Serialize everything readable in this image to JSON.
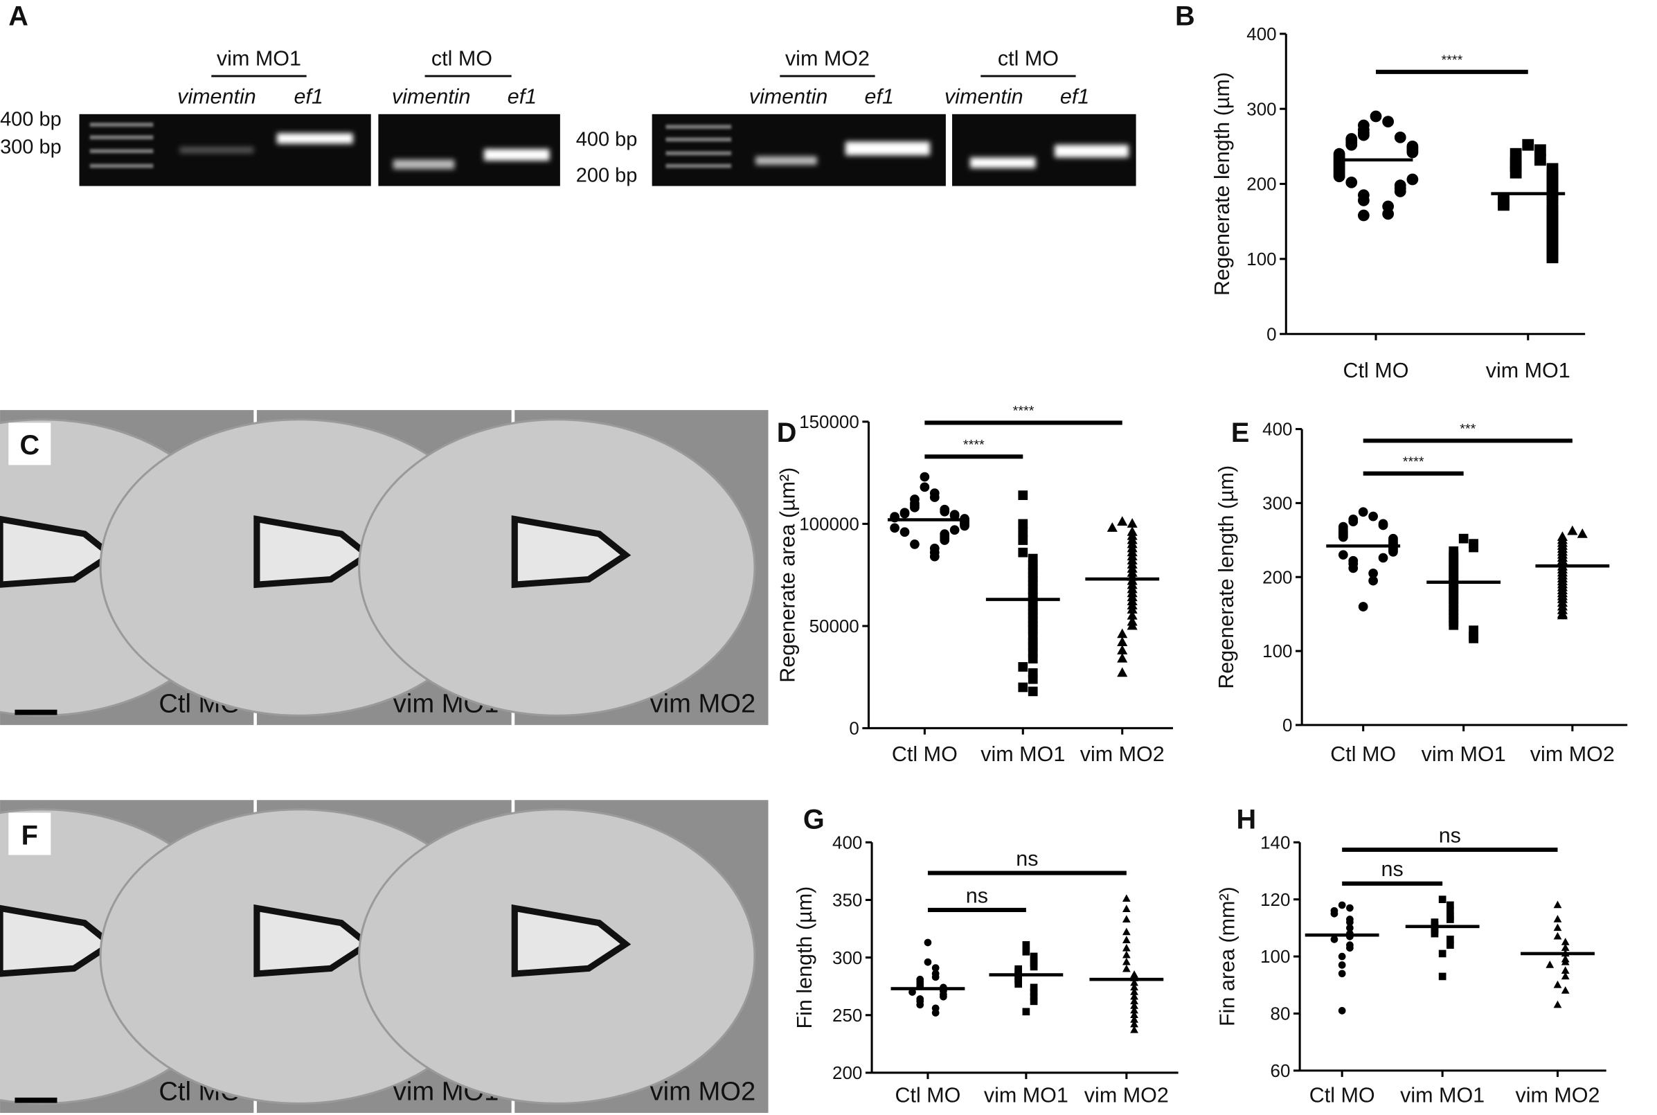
{
  "gel": {
    "panel_label": "A",
    "markers_left": [
      "400 bp",
      "300 bp"
    ],
    "markers_right": [
      "400 bp",
      "200 bp"
    ],
    "groups": [
      {
        "title": "vim MO1",
        "lanes": [
          "vimentin",
          "ef1"
        ]
      },
      {
        "title": "ctl MO",
        "lanes": [
          "vimentin",
          "ef1"
        ]
      },
      {
        "title": "vim MO2",
        "lanes": [
          "vimentin",
          "ef1"
        ]
      },
      {
        "title": "ctl MO",
        "lanes": [
          "vimentin",
          "ef1"
        ]
      }
    ]
  },
  "micrographs": [
    {
      "panel_label": "C",
      "labels": [
        "Ctl MO",
        "vim MO1",
        "vim MO2"
      ]
    },
    {
      "panel_label": "F",
      "labels": [
        "Ctl MO",
        "vim MO1",
        "vim MO2"
      ]
    }
  ],
  "chart_data": [
    {
      "type": "dotplot",
      "panel_label": "B",
      "y_label": "Regenerate length (µm)",
      "categories": [
        "Ctl MO",
        "vim MO1"
      ],
      "ylim": [
        0,
        400
      ],
      "yticks": [
        0,
        100,
        200,
        300,
        400
      ],
      "groups": [
        {
          "marker": "circle",
          "mean": 232,
          "values": [
            290,
            283,
            278,
            272,
            268,
            265,
            262,
            260,
            258,
            255,
            252,
            250,
            248,
            246,
            244,
            242,
            240,
            238,
            236,
            234,
            232,
            230,
            228,
            226,
            224,
            222,
            220,
            218,
            216,
            214,
            212,
            210,
            206,
            202,
            198,
            194,
            190,
            185,
            178,
            170,
            160,
            158
          ]
        },
        {
          "marker": "square",
          "mean": 187,
          "values": [
            252,
            245,
            240,
            232,
            228,
            224,
            220,
            215,
            212,
            208,
            204,
            200,
            197,
            194,
            190,
            187,
            184,
            181,
            178,
            175,
            172,
            168,
            164,
            160,
            156,
            152,
            148,
            144,
            140,
            136,
            132,
            128,
            124,
            120,
            116,
            112,
            108,
            104,
            102
          ]
        }
      ],
      "comparisons": [
        {
          "label": "****",
          "groups": [
            0,
            1
          ]
        }
      ]
    },
    {
      "type": "dotplot",
      "panel_label": "D",
      "y_label": "Regenerate area (µm²)",
      "categories": [
        "Ctl MO",
        "vim MO1",
        "vim MO2"
      ],
      "ylim": [
        0,
        150000
      ],
      "yticks": [
        0,
        50000,
        100000,
        150000
      ],
      "groups": [
        {
          "marker": "circle",
          "mean": 102000,
          "values": [
            123000,
            118000,
            115000,
            113000,
            112000,
            110000,
            109000,
            108000,
            107000,
            106000,
            105500,
            105000,
            104500,
            104000,
            103500,
            103000,
            102500,
            102000,
            101500,
            101000,
            100500,
            100000,
            99500,
            99000,
            98000,
            97000,
            96000,
            95000,
            94000,
            93000,
            92000,
            90000,
            88000,
            86000,
            84000
          ]
        },
        {
          "marker": "square",
          "mean": 63000,
          "values": [
            114000,
            100000,
            96000,
            92000,
            86000,
            83000,
            80000,
            78000,
            76000,
            74000,
            72000,
            70000,
            68000,
            66000,
            64000,
            62000,
            60000,
            58000,
            56000,
            54000,
            52000,
            50000,
            48000,
            45000,
            42000,
            40000,
            37000,
            34000,
            30000,
            27000,
            24000,
            20000,
            18000
          ]
        },
        {
          "marker": "triangle",
          "mean": 73000,
          "values": [
            101000,
            100000,
            98000,
            96000,
            94000,
            92000,
            90000,
            88000,
            86000,
            84000,
            82000,
            80000,
            78000,
            76000,
            74000,
            72000,
            70000,
            68000,
            66000,
            64000,
            62000,
            60000,
            58000,
            55000,
            52000,
            50000,
            46000,
            42000,
            38000,
            34000,
            27000
          ]
        }
      ],
      "comparisons": [
        {
          "label": "****",
          "groups": [
            0,
            1
          ]
        },
        {
          "label": "****",
          "groups": [
            0,
            2
          ]
        }
      ]
    },
    {
      "type": "dotplot",
      "panel_label": "E",
      "y_label": "Regenerate length (µm)",
      "categories": [
        "Ctl MO",
        "vim MO1",
        "vim MO2"
      ],
      "ylim": [
        0,
        400
      ],
      "yticks": [
        0,
        100,
        200,
        300,
        400
      ],
      "groups": [
        {
          "marker": "circle",
          "mean": 242,
          "values": [
            288,
            282,
            278,
            275,
            272,
            270,
            268,
            265,
            262,
            260,
            258,
            256,
            254,
            252,
            250,
            248,
            246,
            244,
            242,
            240,
            238,
            236,
            234,
            230,
            226,
            222,
            218,
            212,
            205,
            195,
            160
          ]
        },
        {
          "marker": "square",
          "mean": 193,
          "values": [
            252,
            245,
            240,
            235,
            230,
            226,
            222,
            218,
            214,
            210,
            206,
            202,
            198,
            194,
            190,
            186,
            182,
            178,
            174,
            170,
            165,
            160,
            155,
            150,
            145,
            140,
            135,
            128,
            120,
            117
          ]
        },
        {
          "marker": "triangle",
          "mean": 215,
          "values": [
            262,
            258,
            254,
            250,
            246,
            242,
            238,
            234,
            230,
            226,
            222,
            218,
            214,
            210,
            206,
            202,
            198,
            194,
            190,
            186,
            182,
            178,
            174,
            170,
            165,
            160,
            155,
            150,
            148
          ]
        }
      ],
      "comparisons": [
        {
          "label": "****",
          "groups": [
            0,
            1
          ]
        },
        {
          "label": "***",
          "groups": [
            0,
            2
          ]
        }
      ]
    },
    {
      "type": "dotplot",
      "panel_label": "G",
      "y_label": "Fin length (µm)",
      "categories": [
        "Ctl MO",
        "vim MO1",
        "vim MO2"
      ],
      "ylim": [
        200,
        400
      ],
      "yticks": [
        200,
        250,
        300,
        350,
        400
      ],
      "groups": [
        {
          "marker": "circle",
          "mean": 273,
          "values": [
            313,
            296,
            291,
            286,
            283,
            281,
            279,
            277,
            275,
            274,
            272,
            271,
            270,
            268,
            266,
            264,
            262,
            259,
            256,
            252
          ]
        },
        {
          "marker": "square",
          "mean": 285,
          "values": [
            311,
            305,
            301,
            298,
            295,
            292,
            290,
            288,
            286,
            284,
            282,
            280,
            277,
            274,
            270,
            266,
            262,
            253
          ]
        },
        {
          "marker": "triangle",
          "mean": 281,
          "values": [
            351,
            342,
            333,
            322,
            315,
            308,
            302,
            296,
            290,
            285,
            282,
            278,
            274,
            270,
            266,
            262,
            258,
            254,
            250,
            246,
            242,
            237
          ]
        }
      ],
      "comparisons": [
        {
          "label": "ns",
          "groups": [
            0,
            1
          ]
        },
        {
          "label": "ns",
          "groups": [
            0,
            2
          ]
        }
      ]
    },
    {
      "type": "dotplot",
      "panel_label": "H",
      "y_label": "Fin area (mm²)",
      "categories": [
        "Ctl MO",
        "vim MO1",
        "vim MO2"
      ],
      "ylim": [
        60,
        140
      ],
      "yticks": [
        60,
        80,
        100,
        120,
        140
      ],
      "groups": [
        {
          "marker": "circle",
          "mean": 107.5,
          "values": [
            118,
            117,
            116,
            115,
            113,
            112,
            110,
            108,
            107,
            106,
            104,
            103,
            100,
            97,
            94,
            81
          ]
        },
        {
          "marker": "square",
          "mean": 110.5,
          "values": [
            120,
            118,
            116,
            114,
            113,
            112,
            111,
            110,
            109,
            108,
            106,
            104,
            101,
            93
          ]
        },
        {
          "marker": "triangle",
          "mean": 101,
          "values": [
            118,
            113,
            110,
            107,
            105,
            103,
            101,
            99,
            98,
            97,
            95,
            93,
            90,
            88,
            83
          ]
        }
      ],
      "comparisons": [
        {
          "label": "ns",
          "groups": [
            0,
            1
          ]
        },
        {
          "label": "ns",
          "groups": [
            0,
            2
          ]
        }
      ]
    }
  ]
}
